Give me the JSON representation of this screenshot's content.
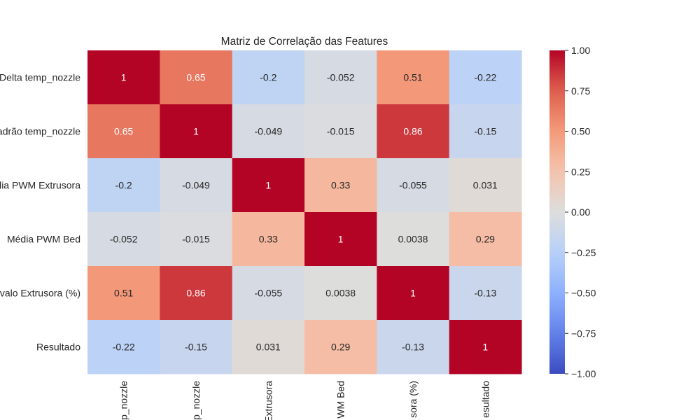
{
  "chart_data": {
    "type": "heatmap",
    "title": "Matriz de Correlação das Features",
    "row_tick_labels": [
      "Delta temp_nozzle",
      "adrão temp_nozzle",
      "dia PWM Extrusora",
      "Média PWM Bed",
      "rvalo Extrusora (%)",
      "Resultado"
    ],
    "col_tick_labels": [
      "p_nozzle",
      "p_nozzle",
      "Extrusora",
      "WM Bed",
      "sora (%)",
      "esultado"
    ],
    "values": [
      [
        1,
        0.65,
        -0.2,
        -0.052,
        0.51,
        -0.22
      ],
      [
        0.65,
        1,
        -0.049,
        -0.015,
        0.86,
        -0.15
      ],
      [
        -0.2,
        -0.049,
        1,
        0.33,
        -0.055,
        0.031
      ],
      [
        -0.052,
        -0.015,
        0.33,
        1,
        0.0038,
        0.29
      ],
      [
        0.51,
        0.86,
        -0.055,
        0.0038,
        1,
        -0.13
      ],
      [
        -0.22,
        -0.15,
        0.031,
        0.29,
        -0.13,
        1
      ]
    ],
    "cell_labels": [
      [
        "1",
        "0.65",
        "-0.2",
        "-0.052",
        "0.51",
        "-0.22"
      ],
      [
        "0.65",
        "1",
        "-0.049",
        "-0.015",
        "0.86",
        "-0.15"
      ],
      [
        "-0.2",
        "-0.049",
        "1",
        "0.33",
        "-0.055",
        "0.031"
      ],
      [
        "-0.052",
        "-0.015",
        "0.33",
        "1",
        "0.0038",
        "0.29"
      ],
      [
        "0.51",
        "0.86",
        "-0.055",
        "0.0038",
        "1",
        "-0.13"
      ],
      [
        "-0.22",
        "-0.15",
        "0.031",
        "0.29",
        "-0.13",
        "1"
      ]
    ],
    "colormap": "coolwarm",
    "vmin": -1.0,
    "vmax": 1.0,
    "colorbar_ticks": [
      1.0,
      0.75,
      0.5,
      0.25,
      0.0,
      -0.25,
      -0.5,
      -0.75,
      -1.0
    ],
    "colorbar_tick_labels": [
      "1.00",
      "0.75",
      "0.50",
      "0.25",
      "0.00",
      "−0.25",
      "−0.50",
      "−0.75",
      "−1.00"
    ]
  }
}
